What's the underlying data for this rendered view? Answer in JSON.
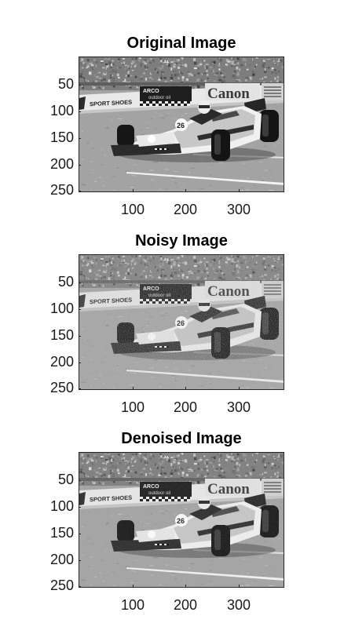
{
  "figure": {
    "panels": [
      {
        "title": "Original Image",
        "variant": "original",
        "yticks": [
          "50",
          "100",
          "150",
          "200",
          "250"
        ],
        "xticks": [
          "100",
          "200",
          "300"
        ]
      },
      {
        "title": "Noisy Image",
        "variant": "noisy",
        "yticks": [
          "50",
          "100",
          "150",
          "200",
          "250"
        ],
        "xticks": [
          "100",
          "200",
          "300"
        ]
      },
      {
        "title": "Denoised Image",
        "variant": "denoised",
        "yticks": [
          "50",
          "100",
          "150",
          "200",
          "250"
        ],
        "xticks": [
          "100",
          "200",
          "300"
        ]
      }
    ],
    "image_text": {
      "sponsor_left": "SPORT SHOES",
      "sponsor_center": "ARCO",
      "sponsor_center_sub": "outdoor oil",
      "sponsor_right": "Canon",
      "car_number": "26"
    },
    "colormap": "gray"
  }
}
